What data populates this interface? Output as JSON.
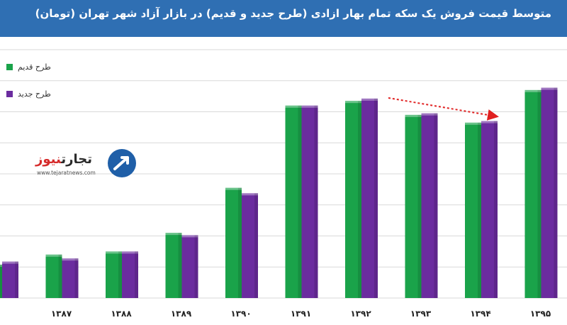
{
  "header": {
    "title": "متوسط قیمت فروش یک سکه تمام بهار ازادی (طرح جدید و قدیم) در بازار آزاد شهر تهران (تومان)"
  },
  "logo": {
    "name_part1": "تجارت",
    "name_part2": "نیوز",
    "url": "www.tejaratnews.com"
  },
  "colors": {
    "header_bg": "#2f6fb3",
    "old_design": "#1aa34a",
    "new_design": "#6b2c9f",
    "trend_arrow": "#e02020"
  },
  "chart_data": {
    "type": "bar",
    "title": "متوسط قیمت فروش یک سکه تمام بهار ازادی (طرح جدید و قدیم) در بازار آزاد شهر تهران (تومان)",
    "categories": [
      "",
      "۱۳۸۷",
      "۱۳۸۸",
      "۱۳۸۹",
      "۱۳۹۰",
      "۱۳۹۱",
      "۱۳۹۲",
      "۱۳۹۳",
      "۱۳۹۴",
      "۱۳۹۵"
    ],
    "series": [
      {
        "name": "طرح قدیم",
        "color": "#1aa34a",
        "values": [
          43,
          56,
          60,
          84,
          142,
          248,
          254,
          236,
          226,
          268
        ]
      },
      {
        "name": "طرح جدید",
        "color": "#6b2c9f",
        "values": [
          47,
          51,
          60,
          81,
          135,
          248,
          257,
          238,
          228,
          271
        ]
      }
    ],
    "legend": {
      "placement": "top-left",
      "entries": [
        "طرح قدیم",
        "طرح جدید"
      ]
    },
    "ylim": [
      0,
      320
    ],
    "grid": true,
    "annotation": "trend-arrow-down-right"
  }
}
